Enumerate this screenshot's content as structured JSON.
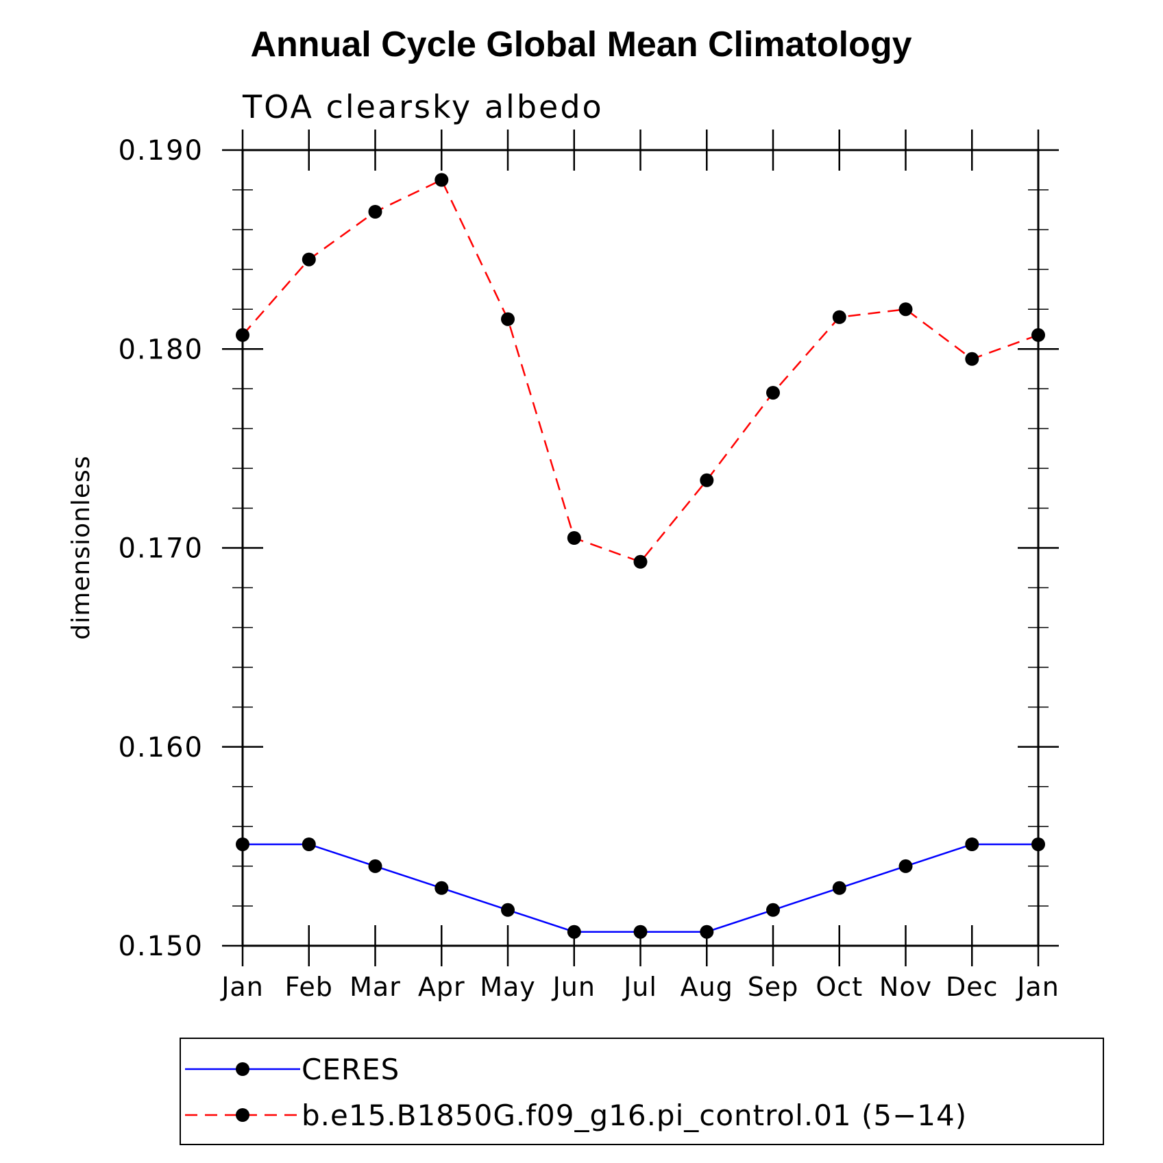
{
  "chart_data": {
    "type": "line",
    "title": "Annual Cycle Global Mean Climatology",
    "subtitle": "TOA clearsky albedo",
    "xlabel": "",
    "ylabel": "dimensionless",
    "categories": [
      "Jan",
      "Feb",
      "Mar",
      "Apr",
      "May",
      "Jun",
      "Jul",
      "Aug",
      "Sep",
      "Oct",
      "Nov",
      "Dec",
      "Jan"
    ],
    "ylim": [
      0.15,
      0.19
    ],
    "yticks": [
      0.15,
      0.16,
      0.17,
      0.18,
      0.19
    ],
    "ytick_labels": [
      "0.150",
      "0.160",
      "0.170",
      "0.180",
      "0.190"
    ],
    "yminor_step": 0.002,
    "grid": false,
    "legend_position": "bottom",
    "series": [
      {
        "name": "CERES",
        "color": "#0000ff",
        "style": "solid",
        "marker": "filled-circle",
        "values": [
          0.1551,
          0.1551,
          0.154,
          0.1529,
          0.1518,
          0.1507,
          0.1507,
          0.1507,
          0.1518,
          0.1529,
          0.154,
          0.1551,
          0.1551
        ]
      },
      {
        "name": "b.e15.B1850G.f09_g16.pi_control.01 (5−14)",
        "color": "#ff0000",
        "style": "dashed",
        "marker": "filled-circle",
        "values": [
          0.1807,
          0.1845,
          0.1869,
          0.1885,
          0.1815,
          0.1705,
          0.1693,
          0.1734,
          0.1778,
          0.1816,
          0.182,
          0.1795,
          0.1807
        ]
      }
    ]
  }
}
